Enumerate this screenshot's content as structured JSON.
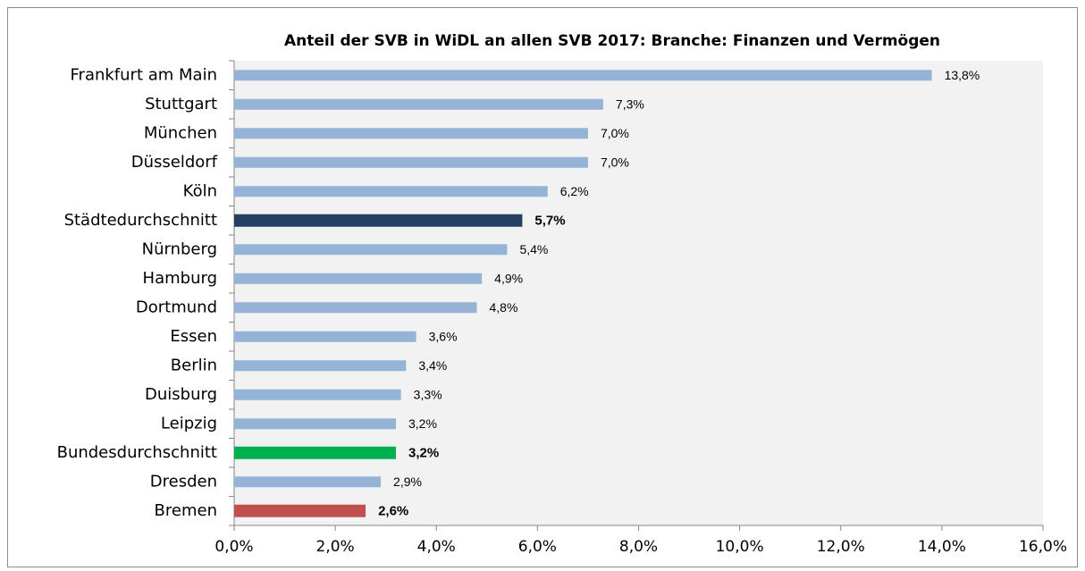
{
  "chart_data": {
    "type": "bar",
    "orientation": "horizontal",
    "title": "Anteil der SVB in WiDL an allen SVB 2017: Branche: Finanzen und Vermögen",
    "categories": [
      "Frankfurt am Main",
      "Stuttgart",
      "München",
      "Düsseldorf",
      "Köln",
      "Städtedurchschnitt",
      "Nürnberg",
      "Hamburg",
      "Dortmund",
      "Essen",
      "Berlin",
      "Duisburg",
      "Leipzig",
      "Bundesdurchschnitt",
      "Dresden",
      "Bremen"
    ],
    "values": [
      13.8,
      7.3,
      7.0,
      7.0,
      6.2,
      5.7,
      5.4,
      4.9,
      4.8,
      3.6,
      3.4,
      3.3,
      3.2,
      3.2,
      2.9,
      2.6
    ],
    "value_labels": [
      "13,8%",
      "7,3%",
      "7,0%",
      "7,0%",
      "6,2%",
      "5,7%",
      "5,4%",
      "4,9%",
      "4,8%",
      "3,6%",
      "3,4%",
      "3,3%",
      "3,2%",
      "3,2%",
      "2,9%",
      "2,6%"
    ],
    "colors": [
      "#95b3d7",
      "#95b3d7",
      "#95b3d7",
      "#95b3d7",
      "#95b3d7",
      "#243f60",
      "#95b3d7",
      "#95b3d7",
      "#95b3d7",
      "#95b3d7",
      "#95b3d7",
      "#95b3d7",
      "#95b3d7",
      "#00b050",
      "#95b3d7",
      "#c0504d"
    ],
    "label_colors": [
      "#000000",
      "#000000",
      "#000000",
      "#000000",
      "#000000",
      "#243f60",
      "#000000",
      "#000000",
      "#000000",
      "#000000",
      "#000000",
      "#000000",
      "#000000",
      "#00b050",
      "#000000",
      "#c0504d"
    ],
    "xlim": [
      0,
      16
    ],
    "xticks": [
      {
        "value": 0,
        "label": "0,0%"
      },
      {
        "value": 2,
        "label": "2,0%"
      },
      {
        "value": 4,
        "label": "4,0%"
      },
      {
        "value": 6,
        "label": "6,0%"
      },
      {
        "value": 8,
        "label": "8,0%"
      },
      {
        "value": 10,
        "label": "10,0%"
      },
      {
        "value": 12,
        "label": "12,0%"
      },
      {
        "value": 14,
        "label": "14,0%"
      },
      {
        "value": 16,
        "label": "16,0%"
      }
    ]
  }
}
